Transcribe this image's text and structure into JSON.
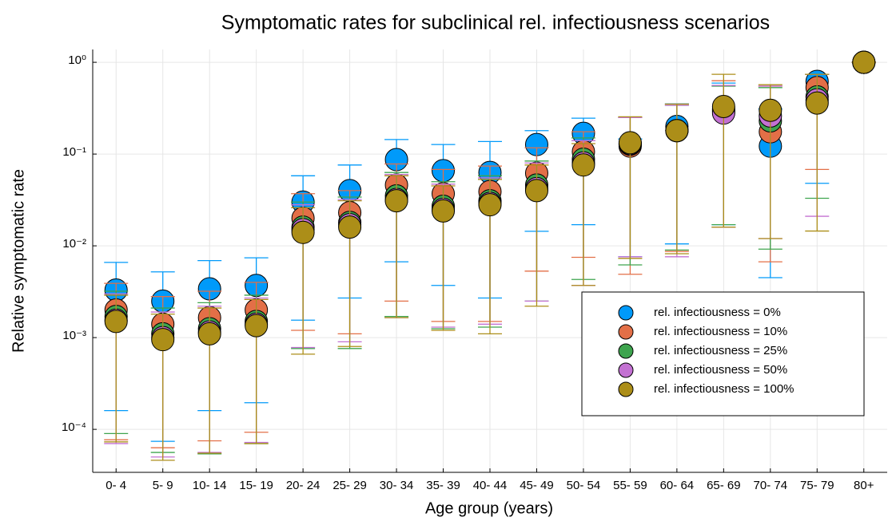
{
  "chart_data": {
    "type": "scatter",
    "title": "Symptomatic rates for subclinical rel. infectiousness scenarios",
    "x_label": "Age group (years)",
    "y_label": "Relative symptomatic rate",
    "categories": [
      "0- 4",
      "5- 9",
      "10- 14",
      "15- 19",
      "20- 24",
      "25- 29",
      "30- 34",
      "35- 39",
      "40- 44",
      "45- 49",
      "50- 54",
      "55- 59",
      "60- 64",
      "65- 69",
      "70- 74",
      "75- 79",
      "80+"
    ],
    "log_y": true,
    "grid": true,
    "legend_position": "bottom-right",
    "ylim": [
      3.4e-05,
      1.38
    ],
    "yticks": [
      {
        "value": 0.0001,
        "label": "10⁻⁴"
      },
      {
        "value": 0.001,
        "label": "10⁻³"
      },
      {
        "value": 0.01,
        "label": "10⁻²"
      },
      {
        "value": 0.1,
        "label": "10⁻¹"
      },
      {
        "value": 1,
        "label": "10⁰"
      }
    ],
    "series": [
      {
        "name": "rel. infectiousness = 0%",
        "color": "#009afa",
        "values": [
          0.0033,
          0.0025,
          0.0034,
          0.0037,
          0.03,
          0.04,
          0.087,
          0.066,
          0.063,
          0.127,
          0.168,
          0.128,
          0.2,
          0.31,
          0.122,
          0.62,
          1
        ],
        "lower": [
          0.00016,
          7.4e-05,
          0.00016,
          0.000195,
          0.00155,
          0.0027,
          0.0067,
          0.0037,
          0.0027,
          0.0144,
          0.017,
          0.0076,
          0.0105,
          0.017,
          0.0045,
          0.048,
          1
        ],
        "upper": [
          0.0066,
          0.0052,
          0.0069,
          0.0074,
          0.058,
          0.076,
          0.144,
          0.127,
          0.137,
          0.18,
          0.246,
          0.146,
          0.353,
          0.594,
          0.31,
          0.74,
          1
        ]
      },
      {
        "name": "rel. infectiousness = 10%",
        "color": "#e36f47",
        "values": [
          0.002,
          0.0014,
          0.00165,
          0.002,
          0.02,
          0.023,
          0.046,
          0.037,
          0.039,
          0.062,
          0.106,
          0.122,
          0.18,
          0.29,
          0.175,
          0.53,
          1
        ],
        "lower": [
          7.7e-05,
          6.3e-05,
          7.5e-05,
          9.3e-05,
          0.0012,
          0.0011,
          0.0025,
          0.0015,
          0.0015,
          0.0053,
          0.0075,
          0.0049,
          0.0087,
          0.016,
          0.0067,
          0.068,
          1
        ],
        "upper": [
          0.0039,
          0.0028,
          0.0032,
          0.004,
          0.037,
          0.04,
          0.078,
          0.068,
          0.074,
          0.117,
          0.175,
          0.25,
          0.35,
          0.63,
          0.55,
          0.74,
          1
        ]
      },
      {
        "name": "rel. infectiousness = 25%",
        "color": "#3ea44e",
        "values": [
          0.0017,
          0.0011,
          0.00125,
          0.0015,
          0.016,
          0.018,
          0.035,
          0.027,
          0.031,
          0.046,
          0.088,
          0.128,
          0.18,
          0.3,
          0.23,
          0.42,
          1
        ],
        "lower": [
          9e-05,
          5.6e-05,
          5.4e-05,
          7e-05,
          0.00076,
          0.00076,
          0.0017,
          0.00125,
          0.0013,
          0.0025,
          0.0043,
          0.0062,
          0.009,
          0.017,
          0.0092,
          0.033,
          1
        ],
        "upper": [
          0.0032,
          0.0021,
          0.0024,
          0.0029,
          0.03,
          0.034,
          0.063,
          0.05,
          0.058,
          0.084,
          0.15,
          0.25,
          0.34,
          0.55,
          0.53,
          0.74,
          1
        ]
      },
      {
        "name": "rel. infectiousness = 50%",
        "color": "#c371d2",
        "values": [
          0.00155,
          0.001,
          0.00115,
          0.0014,
          0.015,
          0.017,
          0.032,
          0.025,
          0.029,
          0.042,
          0.08,
          0.13,
          0.18,
          0.28,
          0.26,
          0.39,
          1
        ],
        "lower": [
          7e-05,
          5e-05,
          5.6e-05,
          7.2e-05,
          0.00078,
          0.0009,
          0.00165,
          0.0013,
          0.0014,
          0.0025,
          0.0037,
          0.0076,
          0.0076,
          0.016,
          0.012,
          0.021,
          1
        ],
        "upper": [
          0.003,
          0.0019,
          0.0022,
          0.0027,
          0.028,
          0.032,
          0.06,
          0.047,
          0.055,
          0.08,
          0.14,
          0.25,
          0.34,
          0.56,
          0.55,
          0.74,
          1
        ]
      },
      {
        "name": "rel. infectiousness = 100%",
        "color": "#ac8e18",
        "values": [
          0.0015,
          0.00095,
          0.0011,
          0.00135,
          0.014,
          0.016,
          0.031,
          0.024,
          0.028,
          0.04,
          0.076,
          0.133,
          0.18,
          0.33,
          0.3,
          0.36,
          1
        ],
        "lower": [
          7.3e-05,
          4.6e-05,
          5.5e-05,
          7e-05,
          0.00066,
          0.0008,
          0.00165,
          0.0012,
          0.0011,
          0.0022,
          0.0037,
          0.0073,
          0.0082,
          0.016,
          0.012,
          0.0145,
          1
        ],
        "upper": [
          0.0029,
          0.0018,
          0.0021,
          0.0026,
          0.026,
          0.031,
          0.058,
          0.045,
          0.053,
          0.076,
          0.13,
          0.255,
          0.35,
          0.74,
          0.57,
          0.74,
          1
        ]
      }
    ]
  }
}
